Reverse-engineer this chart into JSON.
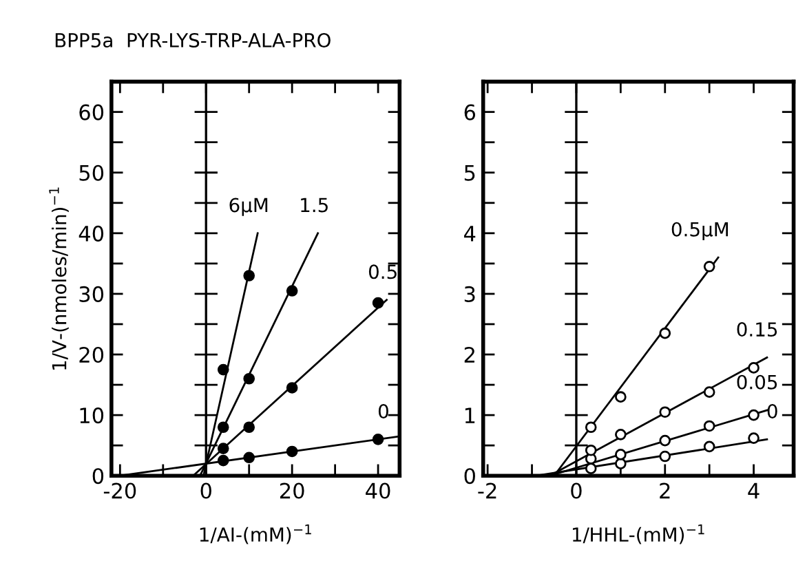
{
  "chart_data": [
    {
      "type": "scatter",
      "title": "BPP5a  PYR-LYS-TRP-ALA-PRO",
      "xlabel": "1/AI-(mM)$^{−1}$",
      "ylabel": "1/V-(nmoles/min)$^{−1}$",
      "xlim": [
        -22,
        45
      ],
      "ylim": [
        0,
        65
      ],
      "xticks": [
        -20,
        {
          "value": -10,
          "label": null
        },
        0,
        {
          "value": 10,
          "label": null
        },
        20,
        {
          "value": 30,
          "label": null
        },
        40
      ],
      "yticks": [
        0,
        {
          "value": 5,
          "label": null
        },
        10,
        {
          "value": 15,
          "label": null
        },
        20,
        {
          "value": 25,
          "label": null
        },
        30,
        {
          "value": 35,
          "label": null
        },
        40,
        {
          "value": 45,
          "label": null
        },
        50,
        {
          "value": 55,
          "label": null
        },
        60
      ],
      "marker": "circle",
      "grid": false,
      "ref_lines": [
        {
          "axis": "x",
          "value": 0,
          "label": null
        }
      ],
      "series": [
        {
          "color": "#000000",
          "x": [
            4,
            10,
            20,
            40
          ],
          "values": [
            2.5,
            3,
            4,
            6
          ]
        },
        {
          "color": "#000000",
          "x": [
            4,
            10,
            20,
            40
          ],
          "values": [
            4.5,
            8,
            14.5,
            28.5
          ]
        },
        {
          "color": "#000000",
          "x": [
            4,
            10,
            20
          ],
          "values": [
            8,
            16,
            30.5
          ]
        },
        {
          "color": "#000000",
          "x": [
            4,
            10
          ],
          "values": [
            17.5,
            33
          ]
        },
        {
          "type": "line",
          "marker": "none",
          "color": "#000000",
          "x": [
            -20,
            45
          ],
          "values": [
            0,
            6.5
          ]
        },
        {
          "type": "line",
          "marker": "none",
          "color": "#000000",
          "x": [
            -3,
            42
          ],
          "values": [
            0,
            29
          ]
        },
        {
          "type": "line",
          "marker": "none",
          "color": "#000000",
          "x": [
            -1.4,
            26
          ],
          "values": [
            0,
            40
          ]
        },
        {
          "type": "line",
          "marker": "none",
          "color": "#000000",
          "x": [
            -0.6,
            12
          ],
          "values": [
            0,
            40
          ]
        }
      ],
      "annotations": [
        {
          "text": "6μM",
          "x": 12,
          "y": 40
        },
        {
          "text": "1.5",
          "x": 26,
          "y": 40
        },
        {
          "text": "0.5",
          "x": 42,
          "y": 29
        },
        {
          "text": "0",
          "x": 40,
          "y": 6
        }
      ]
    },
    {
      "type": "scatter",
      "xlabel": "1/HHL-(mM)$^{−1}$",
      "xlim": [
        -2.1,
        4.9
      ],
      "ylim": [
        0,
        6.5
      ],
      "xticks": [
        -2,
        {
          "value": -1,
          "label": null
        },
        0,
        {
          "value": 1,
          "label": null
        },
        2,
        {
          "value": 3,
          "label": null
        },
        4
      ],
      "yticks": [
        0,
        {
          "value": 0.5,
          "label": null
        },
        1,
        {
          "value": 1.5,
          "label": null
        },
        2,
        {
          "value": 2.5,
          "label": null
        },
        3,
        {
          "value": 3.5,
          "label": null
        },
        4,
        {
          "value": 4.5,
          "label": null
        },
        5,
        {
          "value": 5.5,
          "label": null
        },
        6
      ],
      "marker": "circle",
      "grid": false,
      "ref_lines": [
        {
          "axis": "x",
          "value": 0,
          "label": null
        }
      ],
      "series": [
        {
          "color": "#ffffff",
          "x": [
            0.33,
            1,
            2,
            3,
            4
          ],
          "values": [
            0.12,
            0.2,
            0.32,
            0.48,
            0.62
          ]
        },
        {
          "color": "#ffffff",
          "x": [
            0.33,
            1,
            2,
            3,
            4
          ],
          "values": [
            0.28,
            0.35,
            0.58,
            0.82,
            1.0
          ]
        },
        {
          "color": "#ffffff",
          "x": [
            0.33,
            1,
            2,
            3,
            4
          ],
          "values": [
            0.42,
            0.68,
            1.05,
            1.38,
            1.78
          ]
        },
        {
          "color": "#ffffff",
          "x": [
            0.33,
            1,
            2,
            3
          ],
          "values": [
            0.8,
            1.3,
            2.35,
            3.45
          ]
        },
        {
          "type": "line",
          "marker": "none",
          "color": "#000000",
          "x": [
            -0.9,
            4.3
          ],
          "values": [
            0,
            0.6
          ]
        },
        {
          "type": "line",
          "marker": "none",
          "color": "#000000",
          "x": [
            -0.6,
            4.3
          ],
          "values": [
            0,
            1.08
          ]
        },
        {
          "type": "line",
          "marker": "none",
          "color": "#000000",
          "x": [
            -0.6,
            4.3
          ],
          "values": [
            0,
            1.95
          ]
        },
        {
          "type": "line",
          "marker": "none",
          "color": "#000000",
          "x": [
            -0.5,
            3.2
          ],
          "values": [
            0,
            3.6
          ]
        }
      ],
      "annotations": [
        {
          "text": "0.5μM",
          "x": 3.2,
          "y": 3.6
        },
        {
          "text": "0.15",
          "x": 4.3,
          "y": 1.95
        },
        {
          "text": "0.05",
          "x": 4.3,
          "y": 1.08
        },
        {
          "text": "0",
          "x": 4.3,
          "y": 0.6
        }
      ]
    }
  ]
}
